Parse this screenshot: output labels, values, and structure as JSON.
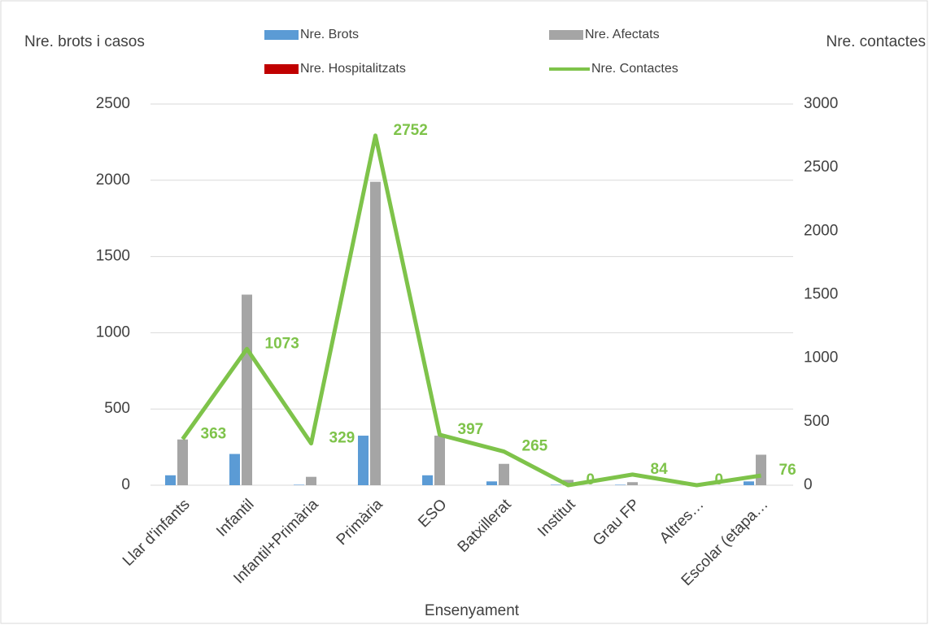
{
  "chart_data": {
    "type": "bar_line",
    "y_title": "Nre. brots i casos",
    "y2_title": "Nre. contactes",
    "x_title": "Ensenyament",
    "categories": [
      "Llar d'infants",
      "Infantil",
      "Infantil+Primària",
      "Primària",
      "ESO",
      "Batxillerat",
      "Institut",
      "Grau FP",
      "Altres…",
      "Escolar (etapa…"
    ],
    "series": [
      {
        "name": "Nre. Brots",
        "color": "#5b9bd5",
        "kind": "bar",
        "values": [
          65,
          205,
          3,
          325,
          65,
          25,
          3,
          3,
          0,
          25
        ]
      },
      {
        "name": "Nre. Afectats",
        "color": "#a5a5a5",
        "kind": "bar",
        "values": [
          300,
          1250,
          55,
          1990,
          325,
          140,
          35,
          20,
          5,
          200
        ]
      },
      {
        "name": "Nre. Hospitalitzats",
        "color": "#c00000",
        "kind": "bar",
        "values": [
          0,
          0,
          0,
          0,
          0,
          0,
          0,
          0,
          0,
          0
        ]
      },
      {
        "name": "Nre.  Contactes",
        "color": "#7ec34a",
        "kind": "line",
        "axis": "y2",
        "values": [
          363,
          1073,
          329,
          2752,
          397,
          265,
          0,
          84,
          0,
          76
        ]
      }
    ],
    "ylim": [
      0,
      2500
    ],
    "yticks": [
      0,
      500,
      1000,
      1500,
      2000,
      2500
    ],
    "y2lim": [
      0,
      3000
    ],
    "y2ticks": [
      0,
      500,
      1000,
      1500,
      2000,
      2500,
      3000
    ],
    "grid": true
  }
}
